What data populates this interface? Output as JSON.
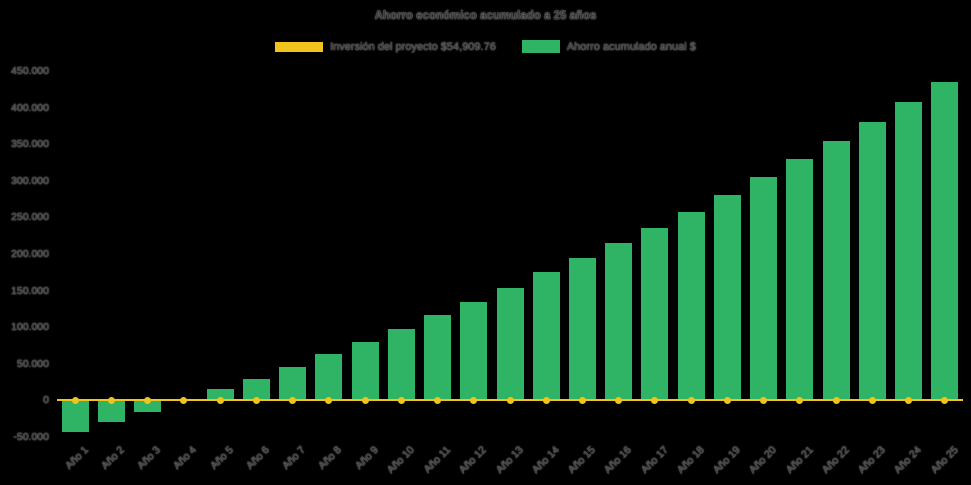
{
  "page": {
    "background": "#000000"
  },
  "title": "Ahorro económico acumulado a 25 años",
  "legend": {
    "items": [
      {
        "label": "Inversión del proyecto $54,909.76",
        "color": "#f0c41c",
        "type": "line"
      },
      {
        "label": "Ahorro acumulado anual $",
        "color": "#2fb465",
        "type": "bar"
      }
    ]
  },
  "chart_data": {
    "type": "bar",
    "title": "Ahorro económico acumulado a 25 años",
    "categories": [
      "Año 1",
      "Año 2",
      "Año 3",
      "Año 4",
      "Año 5",
      "Año 6",
      "Año 7",
      "Año 8",
      "Año 9",
      "Año 10",
      "Año 11",
      "Año 12",
      "Año 13",
      "Año 14",
      "Año 15",
      "Año 16",
      "Año 17",
      "Año 18",
      "Año 19",
      "Año 20",
      "Año 21",
      "Año 22",
      "Año 23",
      "Año 24",
      "Año 25"
    ],
    "series": [
      {
        "name": "Inversión del proyecto $54,909.76",
        "type": "line",
        "color": "#f0c41c",
        "values": [
          0,
          0,
          0,
          0,
          0,
          0,
          0,
          0,
          0,
          0,
          0,
          0,
          0,
          0,
          0,
          0,
          0,
          0,
          0,
          0,
          0,
          0,
          0,
          0,
          0
        ]
      },
      {
        "name": "Ahorro acumulado anual $",
        "type": "bar",
        "color": "#2fb465",
        "values": [
          -43000,
          -30000,
          -16000,
          1500,
          15000,
          29000,
          46000,
          63000,
          80000,
          97000,
          116000,
          135000,
          154000,
          175000,
          195000,
          215000,
          236000,
          258000,
          281000,
          305000,
          330000,
          355000,
          381000,
          407000,
          435000
        ]
      }
    ],
    "ylim": [
      -50000,
      450000
    ],
    "yticks": [
      {
        "label": "450.000",
        "value": 450000
      },
      {
        "label": "400.000",
        "value": 400000
      },
      {
        "label": "350.000",
        "value": 350000
      },
      {
        "label": "300.000",
        "value": 300000
      },
      {
        "label": "250.000",
        "value": 250000
      },
      {
        "label": "200.000",
        "value": 200000
      },
      {
        "label": "150.000",
        "value": 150000
      },
      {
        "label": "100.000",
        "value": 100000
      },
      {
        "label": "50.000",
        "value": 50000
      },
      {
        "label": "0",
        "value": 0
      },
      {
        "label": "-50.000",
        "value": -50000
      }
    ],
    "legend_position": "top",
    "grid": false
  }
}
